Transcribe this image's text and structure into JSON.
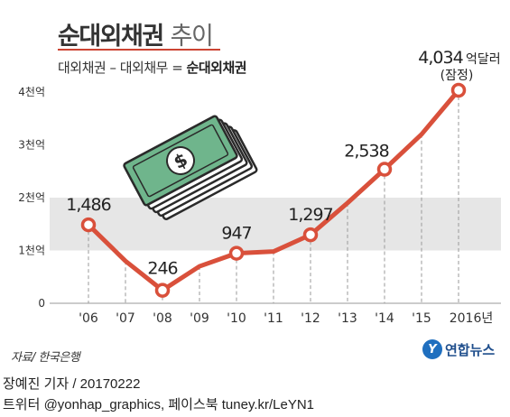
{
  "header": {
    "title_bold": "순대외채권",
    "title_light": "추이",
    "subtitle_plain": "대외채권 – 대외채무 = ",
    "subtitle_bold": "순대외채권"
  },
  "chart_data": {
    "type": "line",
    "title": "순대외채권 추이",
    "subtitle": "대외채권 – 대외채무 = 순대외채권",
    "unit_label": "억달러",
    "last_point_note": "(잠정)",
    "x": [
      "'06",
      "'07",
      "'08",
      "'09",
      "'10",
      "'11",
      "'12",
      "'13",
      "'14",
      "'15",
      "2016년"
    ],
    "values": [
      1486,
      800,
      246,
      700,
      947,
      980,
      1297,
      1900,
      2538,
      3200,
      4034
    ],
    "value_labels": [
      "1,486",
      "",
      "246",
      "",
      "947",
      "",
      "1,297",
      "",
      "2,538",
      "",
      "4,034"
    ],
    "marked_points": [
      0,
      2,
      4,
      6,
      8,
      10
    ],
    "ylim": [
      0,
      4000
    ],
    "yticks": [
      {
        "value": 0,
        "label": "0"
      },
      {
        "value": 1000,
        "label": "1천억"
      },
      {
        "value": 2000,
        "label": "2천억"
      },
      {
        "value": 3000,
        "label": "3천억"
      },
      {
        "value": 4000,
        "label": "4천억"
      }
    ],
    "grid": "alternating-bands",
    "colors": {
      "line": "#d9503b",
      "band": "#e6e6e6",
      "marker_fill": "#ffffff"
    }
  },
  "illustration": {
    "name": "money-stack-icon"
  },
  "footer": {
    "source": "자료/ 한국은행",
    "logo_text": "연합뉴스",
    "logo_mark": "Y",
    "credit_line1": "장예진 기자 / 20170222",
    "credit_line2": "트위터 @yonhap_graphics, 페이스북 tuney.kr/LeYN1"
  }
}
